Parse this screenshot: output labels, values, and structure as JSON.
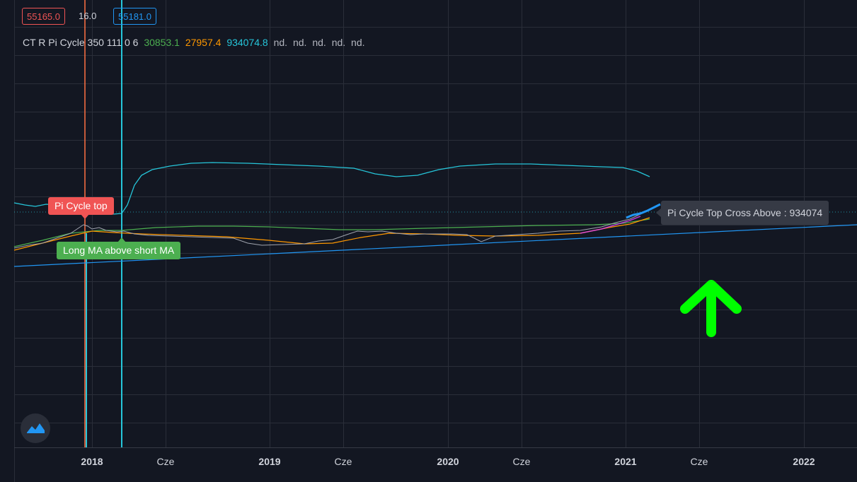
{
  "header": {
    "price_red": "55165.0",
    "price_mid": "16.0",
    "price_blue": "55181.0"
  },
  "legend": {
    "name": "CT R Pi Cycle 350 111 0 6",
    "v1": "30853.1",
    "v2": "27957.4",
    "v3": "934074.8",
    "nd": [
      "nd.",
      "nd.",
      "nd.",
      "nd.",
      "nd."
    ]
  },
  "labels": {
    "pi_cycle_top": "Pi Cycle top",
    "long_ma": "Long MA above short MA",
    "cross_above": "Pi Cycle Top Cross Above : 934074"
  },
  "colors": {
    "background": "#131722",
    "price_line": "#2196f3",
    "long_ma": "#4caf50",
    "short_ma": "#ff9800",
    "upper_band": "#26c6da",
    "signal_top": "#ff7043",
    "arrow": "#00ff00"
  },
  "chart_data": {
    "type": "line",
    "x_ticks": [
      {
        "label": "2018",
        "bold": true
      },
      {
        "label": "Cze",
        "bold": false
      },
      {
        "label": "2019",
        "bold": true
      },
      {
        "label": "Cze",
        "bold": false
      },
      {
        "label": "2020",
        "bold": true
      },
      {
        "label": "Cze",
        "bold": false
      },
      {
        "label": "2021",
        "bold": true
      },
      {
        "label": "Cze",
        "bold": false
      },
      {
        "label": "2022",
        "bold": true
      }
    ],
    "grid": true,
    "legend_placement": "top-left"
  }
}
